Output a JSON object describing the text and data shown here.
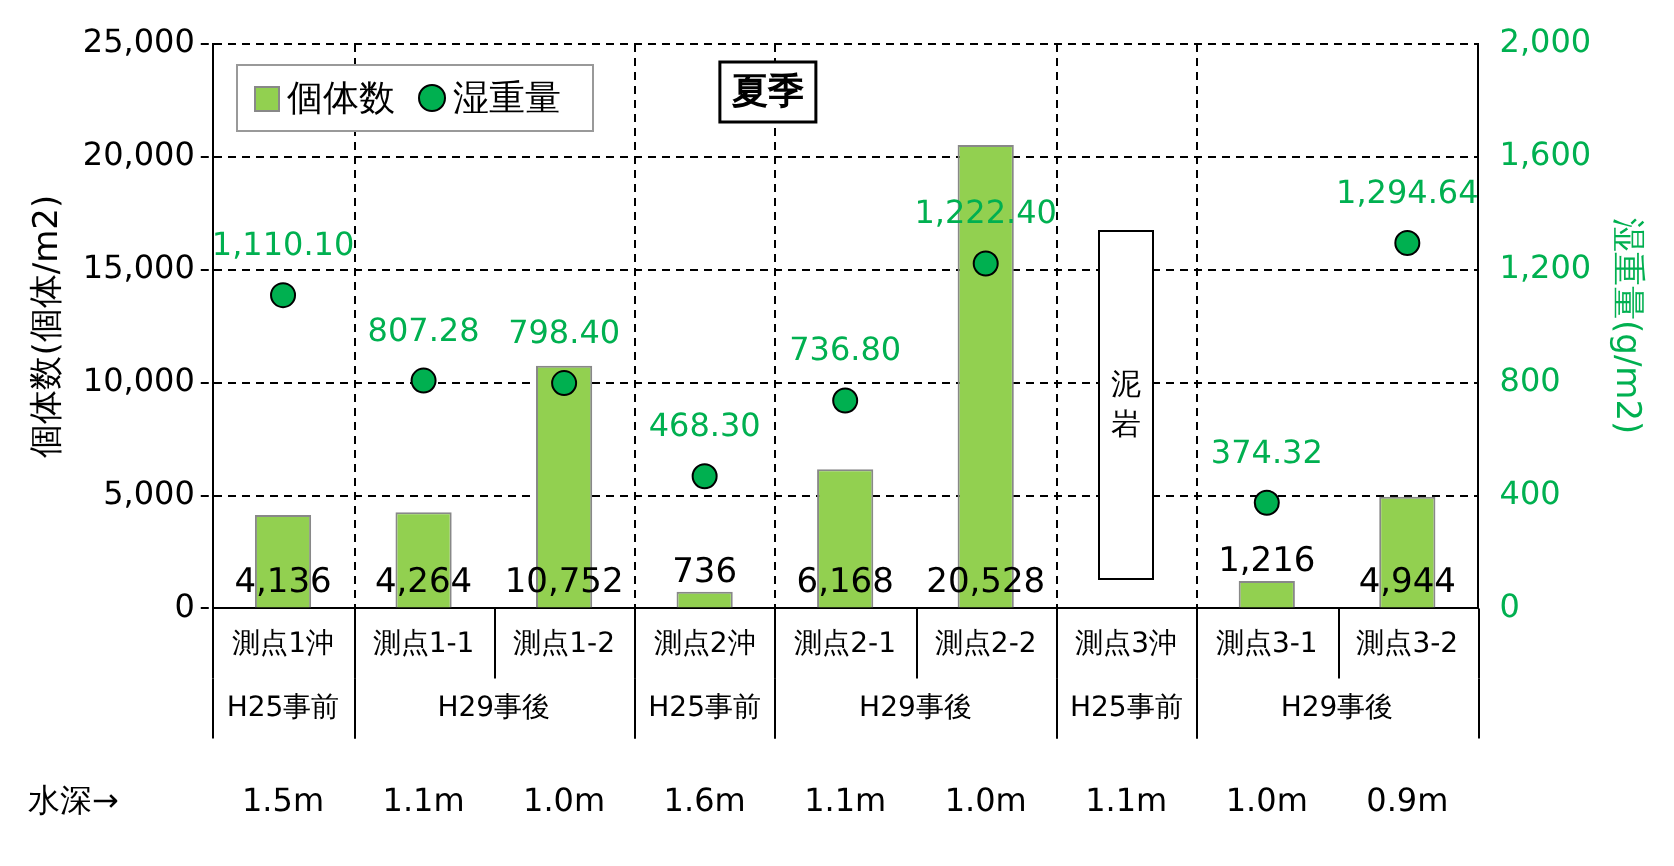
{
  "chart_data": {
    "type": "bar",
    "title": "夏季",
    "ylabel": "個体数(個体/m2)",
    "y2label": "湿重量(g/m2)",
    "categories": [
      "測点1沖",
      "測点1-1",
      "測点1-2",
      "測点2沖",
      "測点2-1",
      "測点2-2",
      "測点3沖",
      "測点3-1",
      "測点3-2"
    ],
    "series": [
      {
        "name": "個体数",
        "color": "#92d050",
        "values": [
          4136,
          4264,
          10752,
          736,
          6168,
          20528,
          null,
          1216,
          4944
        ],
        "value_labels": [
          "4,136",
          "4,264",
          "10,752",
          "736",
          "6,168",
          "20,528",
          null,
          "1,216",
          "4,944"
        ]
      },
      {
        "name": "湿重量",
        "type": "scatter",
        "axis": "y2",
        "color": "#00b050",
        "values": [
          1110.1,
          807.28,
          798.4,
          468.3,
          736.8,
          1222.4,
          null,
          374.32,
          1294.64
        ],
        "value_labels": [
          "1,110.10",
          "807.28",
          "798.40",
          "468.30",
          "736.80",
          "1,222.40",
          null,
          "374.32",
          "1,294.64"
        ]
      }
    ],
    "ylim": [
      0,
      25000
    ],
    "yticks": [
      0,
      {
        "value": 5000,
        "label": "5,000"
      },
      {
        "value": 10000,
        "label": "10,000"
      },
      {
        "value": 15000,
        "label": "15,000"
      },
      {
        "value": 20000,
        "label": "20,000"
      },
      {
        "value": 25000,
        "label": "25,000"
      }
    ],
    "y2lim": [
      0,
      2000
    ],
    "y2ticks": [
      0,
      400,
      800,
      {
        "value": 1200,
        "label": "1,200"
      },
      {
        "value": 1600,
        "label": "1,600"
      },
      {
        "value": 2000,
        "label": "2,000"
      }
    ],
    "grid": "y",
    "legend": "top left",
    "marker": "circle",
    "annotations": [
      "H25事前",
      "H29事後",
      "H25事前",
      "H29事後",
      "H25事前",
      "H29事後",
      "水深→",
      "1.5m",
      "1.1m",
      "1.0m",
      "1.6m",
      "1.1m",
      "1.0m",
      "1.1m",
      "1.0m",
      "0.9m",
      "泥岩"
    ]
  }
}
